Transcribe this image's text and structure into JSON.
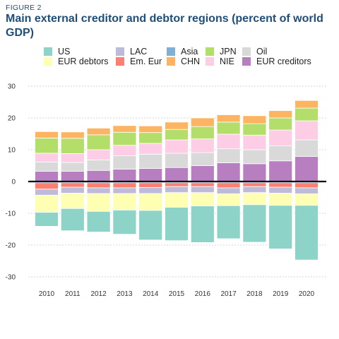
{
  "figure_label": "FIGURE 2",
  "title": "Main external creditor and debtor regions (percent of world GDP)",
  "chart_data": {
    "type": "bar",
    "stacked": true,
    "title": "Main external creditor and debtor regions (percent of world GDP)",
    "xlabel": "",
    "ylabel": "",
    "ylim": [
      -32,
      32
    ],
    "yticks": [
      -30,
      -20,
      -10,
      0,
      10,
      20,
      30
    ],
    "grid": "horizontal dashed",
    "legend_position": "top",
    "categories": [
      "2010",
      "2011",
      "2012",
      "2013",
      "2014",
      "2015",
      "2016",
      "2017",
      "2018",
      "2019",
      "2020"
    ],
    "series": [
      {
        "name": "EUR creditors",
        "color": "#b77fc0",
        "values": [
          3.2,
          3.2,
          3.5,
          3.9,
          4.1,
          4.4,
          5.0,
          5.9,
          5.6,
          6.5,
          7.9
        ]
      },
      {
        "name": "Oil",
        "color": "#d9d9d9",
        "values": [
          2.9,
          2.8,
          3.3,
          4.2,
          4.5,
          4.5,
          4.1,
          4.4,
          4.4,
          4.7,
          5.2
        ]
      },
      {
        "name": "NIE",
        "color": "#fccde5",
        "values": [
          2.8,
          2.8,
          3.2,
          3.3,
          3.4,
          4.2,
          4.3,
          4.6,
          4.6,
          5.0,
          6.0
        ]
      },
      {
        "name": "JPN",
        "color": "#b3de69",
        "values": [
          4.8,
          4.8,
          4.7,
          4.1,
          3.4,
          3.3,
          3.9,
          3.8,
          3.6,
          3.8,
          4.0
        ]
      },
      {
        "name": "CHN",
        "color": "#fdb462",
        "values": [
          2.0,
          2.0,
          2.1,
          2.1,
          2.1,
          2.3,
          2.7,
          2.3,
          2.5,
          2.3,
          2.4
        ]
      },
      {
        "name": "Asia",
        "color": "#80b1d3",
        "values": [
          -0.4,
          -0.4,
          -0.4,
          -0.4,
          -0.4,
          -0.4,
          -0.4,
          -0.4,
          -0.4,
          -0.4,
          -0.4
        ]
      },
      {
        "name": "Em. Eur",
        "color": "#fb8072",
        "values": [
          -2.0,
          -1.4,
          -1.6,
          -1.6,
          -1.5,
          -1.2,
          -1.2,
          -1.6,
          -1.2,
          -1.4,
          -1.6
        ]
      },
      {
        "name": "LAC",
        "color": "#bebada",
        "values": [
          -1.9,
          -1.9,
          -1.8,
          -1.8,
          -1.9,
          -1.9,
          -1.9,
          -1.9,
          -1.9,
          -1.9,
          -1.9
        ]
      },
      {
        "name": "EUR debtors",
        "color": "#ffffb3",
        "values": [
          -5.4,
          -4.8,
          -5.6,
          -5.2,
          -5.3,
          -4.6,
          -4.2,
          -3.7,
          -3.8,
          -3.8,
          -3.6
        ]
      },
      {
        "name": "US",
        "color": "#8dd3c7",
        "values": [
          -4.4,
          -7.0,
          -6.5,
          -7.6,
          -9.3,
          -10.5,
          -11.5,
          -10.4,
          -11.8,
          -13.7,
          -17.2
        ]
      }
    ]
  },
  "legend": [
    {
      "name": "US",
      "color": "#8dd3c7"
    },
    {
      "name": "LAC",
      "color": "#bebada"
    },
    {
      "name": "Asia",
      "color": "#80b1d3"
    },
    {
      "name": "JPN",
      "color": "#b3de69"
    },
    {
      "name": "Oil",
      "color": "#d9d9d9"
    },
    {
      "name": "EUR debtors",
      "color": "#ffffb3"
    },
    {
      "name": "Em. Eur",
      "color": "#fb8072"
    },
    {
      "name": "CHN",
      "color": "#fdb462"
    },
    {
      "name": "NIE",
      "color": "#fccde5"
    },
    {
      "name": "EUR creditors",
      "color": "#b77fc0"
    }
  ]
}
